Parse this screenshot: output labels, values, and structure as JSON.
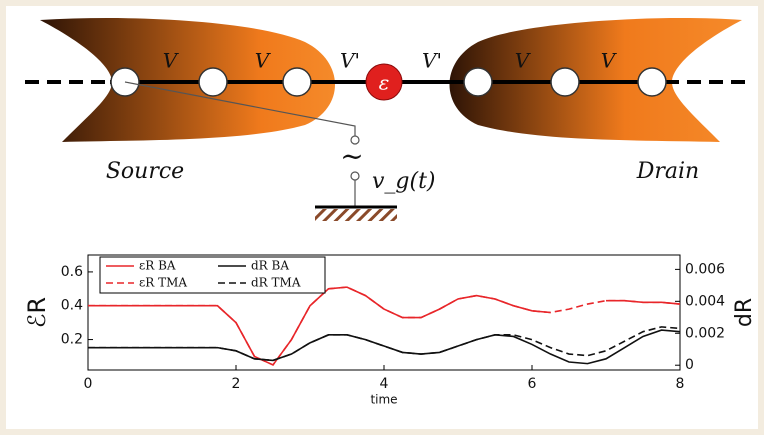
{
  "diagram": {
    "labels": [
      "V",
      "V",
      "V'",
      "ε",
      "V'",
      "V",
      "V"
    ],
    "source": "Source",
    "drain": "Drain",
    "tilde": "~",
    "gate": "v_g(t)"
  },
  "chart_data": {
    "type": "line",
    "x_label": "time",
    "y_label": "ℰR",
    "y2_label": "dR",
    "x": [
      0,
      0.25,
      0.5,
      0.75,
      1,
      1.25,
      1.5,
      1.75,
      2,
      2.25,
      2.5,
      2.75,
      3,
      3.25,
      3.5,
      3.75,
      4,
      4.25,
      4.5,
      4.75,
      5,
      5.25,
      5.5,
      5.75,
      6,
      6.25,
      6.5,
      6.75,
      7,
      7.25,
      7.5,
      7.75,
      8
    ],
    "xlim": [
      0,
      8
    ],
    "xticks": [
      0,
      2,
      4,
      6,
      8
    ],
    "ylim": [
      0.02,
      0.7
    ],
    "yticks": [
      0.2,
      0.4,
      0.6
    ],
    "y2lim": [
      -0.0003,
      0.0069
    ],
    "y2ticks": [
      0,
      0.002,
      0.004,
      0.006
    ],
    "legend": "upper left",
    "series": [
      {
        "name": "εR BA",
        "color": "#e8262a",
        "dash": false,
        "values": [
          0.4,
          0.4,
          0.4,
          0.4,
          0.4,
          0.4,
          0.4,
          0.4,
          0.3,
          0.1,
          0.05,
          0.2,
          0.4,
          0.5,
          0.51,
          0.46,
          0.38,
          0.33,
          0.33,
          0.38,
          0.44,
          0.46,
          0.44,
          0.4,
          0.37,
          0.36,
          null,
          null,
          0.43,
          0.43,
          0.42,
          0.42,
          0.41
        ]
      },
      {
        "name": "εR TMA",
        "color": "#e8262a",
        "dash": true,
        "values": [
          0.4,
          0.4,
          0.4,
          0.4,
          0.4,
          0.4,
          0.4,
          0.4,
          0.3,
          0.1,
          0.05,
          0.2,
          0.4,
          0.5,
          0.51,
          0.46,
          0.38,
          0.33,
          0.33,
          0.38,
          0.44,
          0.46,
          0.44,
          0.4,
          0.37,
          0.36,
          0.38,
          0.41,
          0.43,
          0.43,
          0.42,
          0.42,
          0.41
        ]
      },
      {
        "name": "dR BA",
        "color": "#111111",
        "dash": false,
        "axis": "y2",
        "values": [
          0.0011,
          0.0011,
          0.0011,
          0.0011,
          0.0011,
          0.0011,
          0.0011,
          0.0011,
          0.0009,
          0.0004,
          0.0003,
          0.0007,
          0.0014,
          0.0019,
          0.0019,
          0.0016,
          0.0012,
          0.0008,
          0.0007,
          0.0008,
          0.0012,
          0.0016,
          0.0019,
          0.0018,
          0.0013,
          0.0007,
          0.0002,
          0.0001,
          0.0004,
          0.0011,
          0.0018,
          0.0022,
          0.0021
        ]
      },
      {
        "name": "dR TMA",
        "color": "#111111",
        "dash": true,
        "axis": "y2",
        "values": [
          0.0011,
          0.0011,
          0.0011,
          0.0011,
          0.0011,
          0.0011,
          0.0011,
          0.0011,
          0.0009,
          0.0004,
          0.0003,
          0.0007,
          0.0014,
          0.0019,
          0.0019,
          0.0016,
          0.0012,
          0.0008,
          0.0007,
          0.0008,
          0.0012,
          0.0016,
          0.0019,
          0.0019,
          0.0016,
          0.0011,
          0.0007,
          0.0006,
          0.0009,
          0.0015,
          0.0021,
          0.0024,
          0.0023
        ]
      }
    ]
  }
}
